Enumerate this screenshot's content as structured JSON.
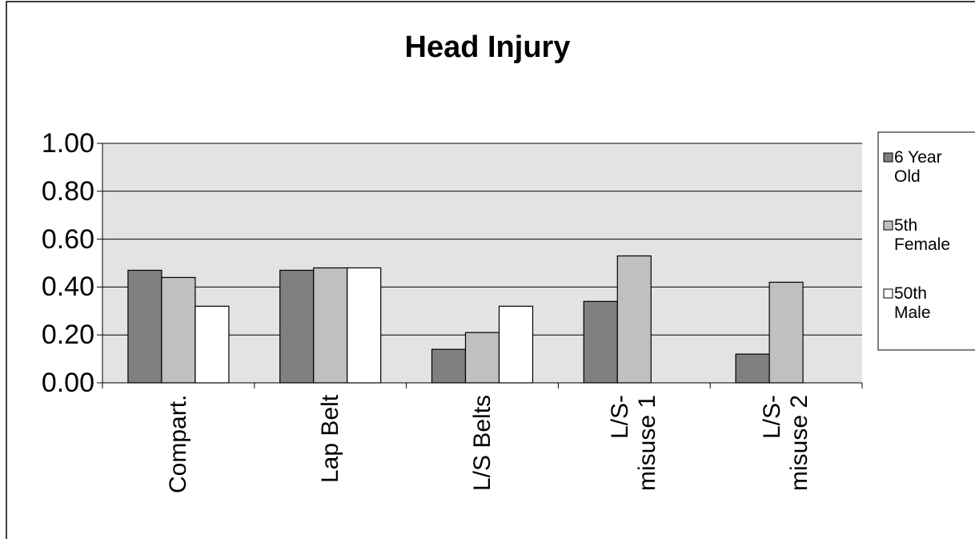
{
  "chart_data": {
    "type": "bar",
    "title": "Head Injury",
    "categories": [
      "Compart.",
      "Lap Belt",
      "L/S Belts",
      "L/S-\nmisuse 1",
      "L/S-\nmisuse 2"
    ],
    "series": [
      {
        "name": "6 Year\nOld",
        "color": "#808080",
        "values": [
          0.47,
          0.47,
          0.14,
          0.34,
          0.12
        ]
      },
      {
        "name": "5th\nFemale",
        "color": "#c0c0c0",
        "values": [
          0.44,
          0.48,
          0.21,
          0.53,
          0.42
        ]
      },
      {
        "name": "50th\nMale",
        "color": "#ffffff",
        "values": [
          0.32,
          0.48,
          0.32,
          null,
          null
        ]
      }
    ],
    "ylim": [
      0,
      1
    ],
    "yticks": [
      {
        "value": 0,
        "label": "0.00"
      },
      {
        "value": 0.2,
        "label": "0.20"
      },
      {
        "value": 0.4,
        "label": "0.40"
      },
      {
        "value": 0.6,
        "label": "0.60"
      },
      {
        "value": 0.8,
        "label": "0.80"
      },
      {
        "value": 1,
        "label": "1.00"
      }
    ],
    "grid": true,
    "legend": "right",
    "plot_background": "#e3e3e3"
  }
}
